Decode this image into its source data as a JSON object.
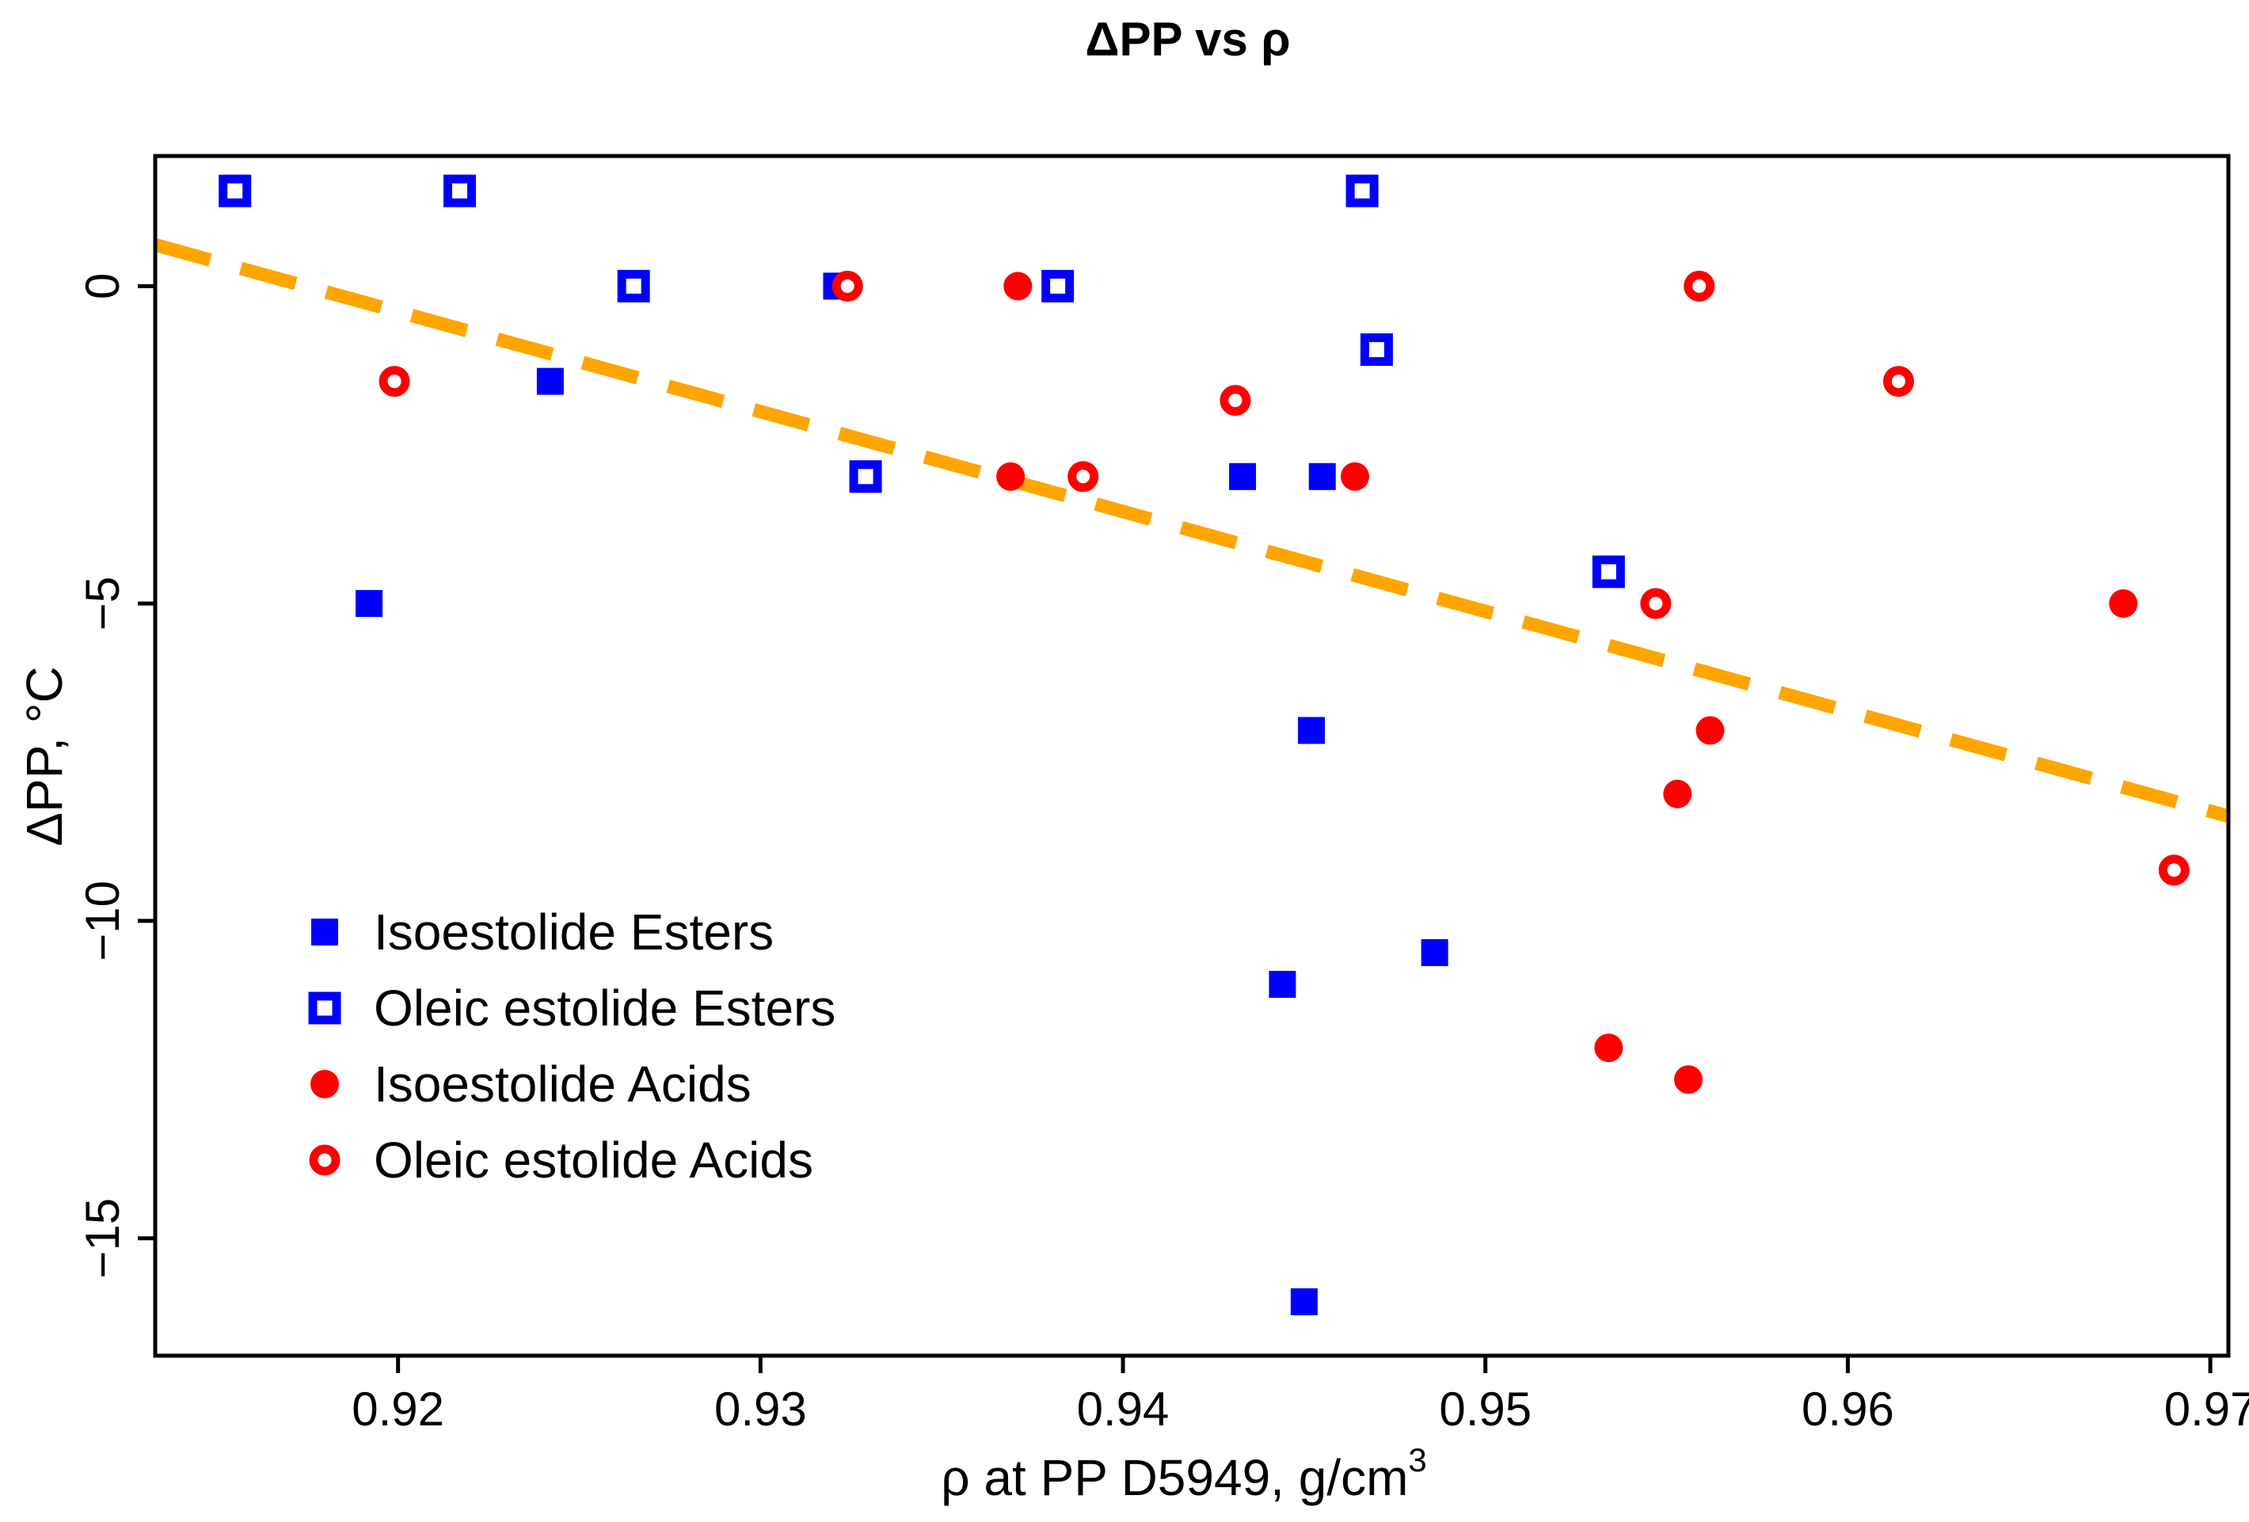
{
  "chart_data": {
    "type": "scatter",
    "title": "ΔPP vs ρ",
    "xlabel": "ρ at PP D5949, g/cm",
    "xlabel_superscript": "3",
    "ylabel": "ΔPP, °C",
    "xlim": [
      0.9133,
      0.9705
    ],
    "ylim": [
      -16.85,
      2.05
    ],
    "x_ticks": [
      0.92,
      0.93,
      0.94,
      0.95,
      0.96,
      0.97
    ],
    "x_tick_labels": [
      "0.92",
      "0.93",
      "0.94",
      "0.95",
      "0.96",
      "0.97"
    ],
    "y_ticks": [
      0,
      -5,
      -10,
      -15
    ],
    "y_tick_labels": [
      "0",
      "−5",
      "−10",
      "−15"
    ],
    "grid": false,
    "legend_position": "bottom-left",
    "trendline": {
      "style": "dashed",
      "color": "#FFA500",
      "x": [
        0.9133,
        0.9705
      ],
      "y": [
        0.65,
        -8.35
      ]
    },
    "series": [
      {
        "name": "Isoestolide Esters",
        "marker": "filled-square",
        "color": "#0000FF",
        "points": [
          [
            0.9192,
            -5.0
          ],
          [
            0.9242,
            -1.5
          ],
          [
            0.9321,
            0.0
          ],
          [
            0.9433,
            -3.0
          ],
          [
            0.9455,
            -3.0
          ],
          [
            0.9452,
            -7.0
          ],
          [
            0.9444,
            -11.0
          ],
          [
            0.9486,
            -10.5
          ],
          [
            0.945,
            -16.0
          ]
        ]
      },
      {
        "name": "Oleic estolide Esters",
        "marker": "open-square",
        "color": "#0000FF",
        "points": [
          [
            0.9155,
            1.5
          ],
          [
            0.9217,
            1.5
          ],
          [
            0.9265,
            0.0
          ],
          [
            0.9329,
            -3.0
          ],
          [
            0.9382,
            0.0
          ],
          [
            0.9466,
            1.5
          ],
          [
            0.947,
            -1.0
          ],
          [
            0.9534,
            -4.5
          ]
        ]
      },
      {
        "name": "Isoestolide Acids",
        "marker": "filled-circle",
        "color": "#FF0000",
        "points": [
          [
            0.9371,
            0.0
          ],
          [
            0.9369,
            -3.0
          ],
          [
            0.9464,
            -3.0
          ],
          [
            0.9553,
            -8.0
          ],
          [
            0.9562,
            -7.0
          ],
          [
            0.9534,
            -12.0
          ],
          [
            0.9556,
            -12.5
          ],
          [
            0.9676,
            -5.0
          ]
        ]
      },
      {
        "name": "Oleic estolide Acids",
        "marker": "open-circle",
        "color": "#FF0000",
        "points": [
          [
            0.9199,
            -1.5
          ],
          [
            0.9324,
            0.0
          ],
          [
            0.9389,
            -3.0
          ],
          [
            0.9431,
            -1.8
          ],
          [
            0.9547,
            -5.0
          ],
          [
            0.9559,
            0.0
          ],
          [
            0.9614,
            -1.5
          ],
          [
            0.969,
            -9.2
          ]
        ]
      }
    ]
  }
}
